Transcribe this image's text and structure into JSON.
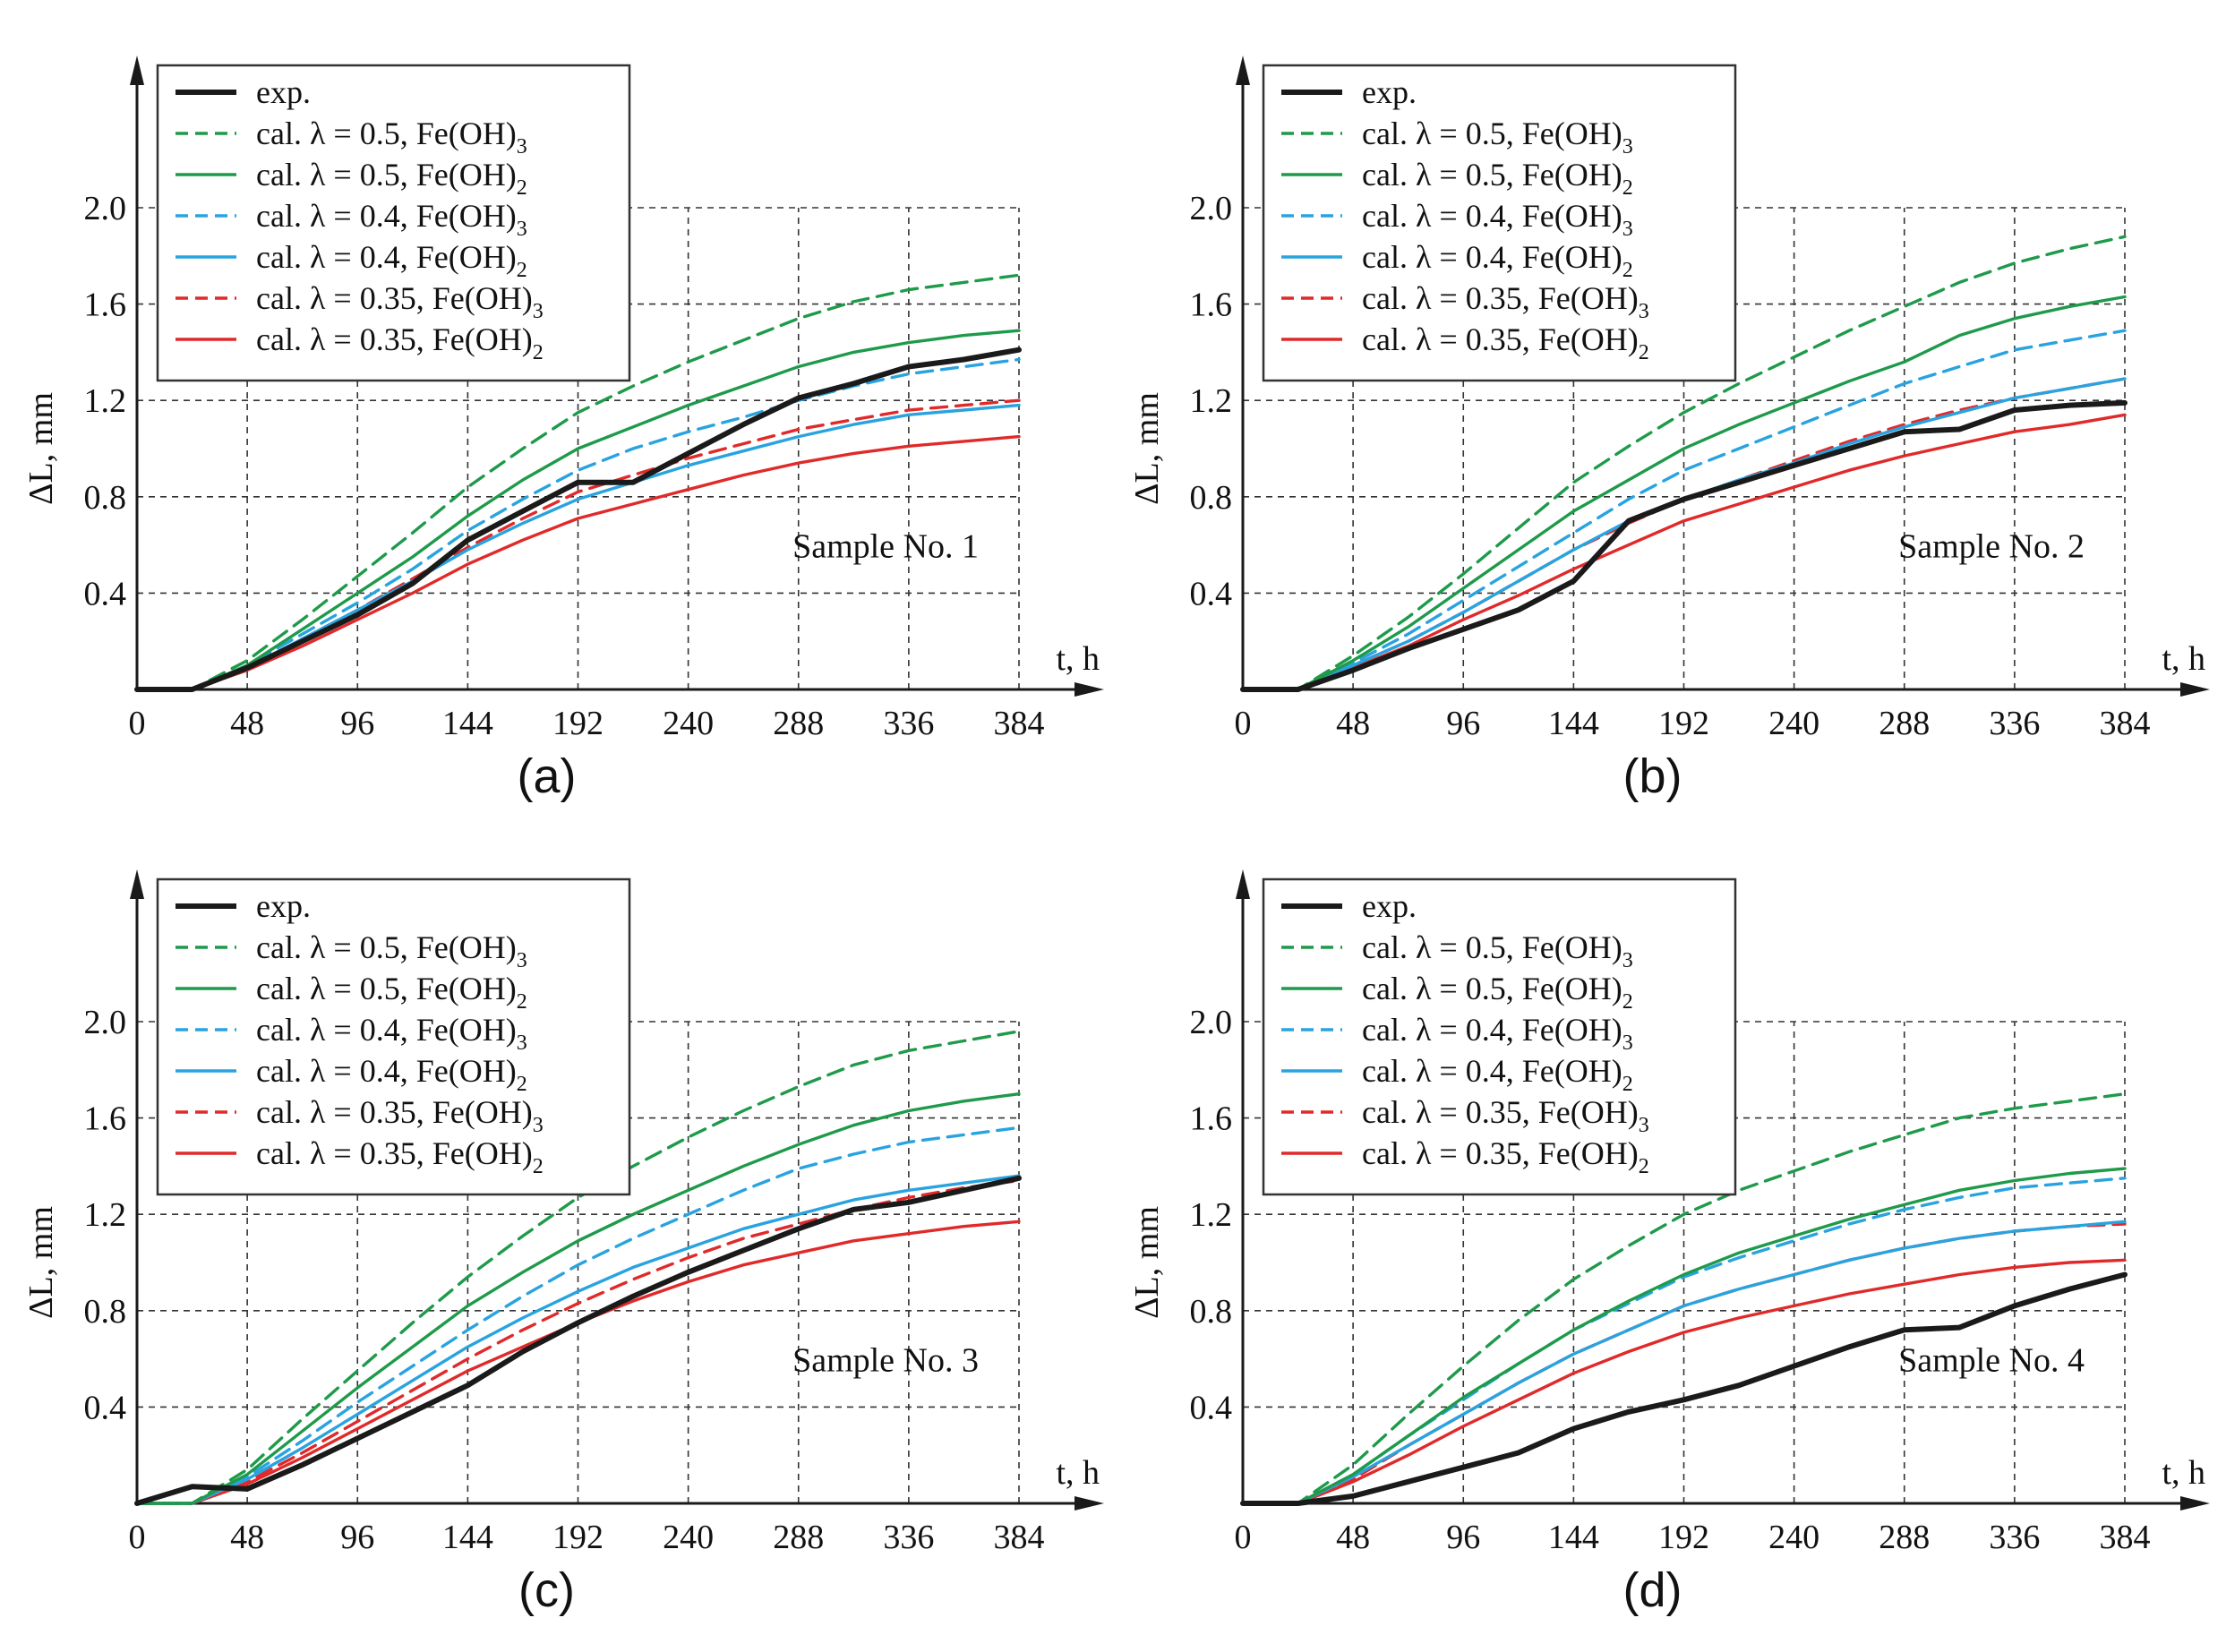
{
  "chart_data": [
    {
      "type": "line",
      "panel": "(a)",
      "annotation": "Sample No. 1",
      "xlabel": "t, h",
      "ylabel": "ΔL, mm",
      "xlim": [
        0,
        384
      ],
      "ylim": [
        0,
        2.0
      ],
      "x_ticks": [
        "0",
        "48",
        "96",
        "144",
        "192",
        "240",
        "288",
        "336",
        "384"
      ],
      "y_ticks": [
        "0.4",
        "0.8",
        "1.2",
        "1.6",
        "2.0"
      ],
      "x": [
        0,
        24,
        48,
        72,
        96,
        120,
        144,
        168,
        192,
        216,
        240,
        264,
        288,
        312,
        336,
        360,
        384
      ],
      "series": [
        {
          "name": "exp.",
          "values": [
            0,
            0,
            0.09,
            0.2,
            0.31,
            0.44,
            0.62,
            0.74,
            0.86,
            0.86,
            0.98,
            1.1,
            1.21,
            1.27,
            1.34,
            1.37,
            1.41
          ]
        },
        {
          "name": "cal. λ = 0.5, Fe(OH)3",
          "values": [
            0,
            0,
            0.12,
            0.29,
            0.47,
            0.65,
            0.84,
            1.0,
            1.15,
            1.26,
            1.36,
            1.45,
            1.54,
            1.61,
            1.66,
            1.69,
            1.72
          ]
        },
        {
          "name": "cal. λ = 0.5, Fe(OH)2",
          "values": [
            0,
            0,
            0.1,
            0.25,
            0.4,
            0.55,
            0.72,
            0.87,
            1.0,
            1.09,
            1.18,
            1.26,
            1.34,
            1.4,
            1.44,
            1.47,
            1.49
          ]
        },
        {
          "name": "cal. λ = 0.4, Fe(OH)3",
          "values": [
            0,
            0,
            0.1,
            0.23,
            0.36,
            0.5,
            0.66,
            0.79,
            0.91,
            1.0,
            1.07,
            1.13,
            1.2,
            1.26,
            1.31,
            1.34,
            1.37
          ]
        },
        {
          "name": "cal. λ = 0.4, Fe(OH)2",
          "values": [
            0,
            0,
            0.09,
            0.21,
            0.33,
            0.45,
            0.58,
            0.69,
            0.79,
            0.86,
            0.93,
            0.99,
            1.05,
            1.1,
            1.14,
            1.16,
            1.18
          ]
        },
        {
          "name": "cal. λ = 0.35, Fe(OH)3",
          "values": [
            0,
            0,
            0.09,
            0.21,
            0.33,
            0.46,
            0.59,
            0.71,
            0.82,
            0.89,
            0.96,
            1.02,
            1.08,
            1.12,
            1.16,
            1.18,
            1.2
          ]
        },
        {
          "name": "cal. λ = 0.35, Fe(OH)2",
          "values": [
            0,
            0,
            0.08,
            0.18,
            0.29,
            0.4,
            0.52,
            0.62,
            0.71,
            0.77,
            0.83,
            0.89,
            0.94,
            0.98,
            1.01,
            1.03,
            1.05
          ]
        }
      ]
    },
    {
      "type": "line",
      "panel": "(b)",
      "annotation": "Sample No. 2",
      "xlabel": "t, h",
      "ylabel": "ΔL, mm",
      "xlim": [
        0,
        384
      ],
      "ylim": [
        0,
        2.0
      ],
      "x_ticks": [
        "0",
        "48",
        "96",
        "144",
        "192",
        "240",
        "288",
        "336",
        "384"
      ],
      "y_ticks": [
        "0.4",
        "0.8",
        "1.2",
        "1.6",
        "2.0"
      ],
      "x": [
        0,
        24,
        48,
        72,
        96,
        120,
        144,
        168,
        192,
        216,
        240,
        264,
        288,
        312,
        336,
        360,
        384
      ],
      "series": [
        {
          "name": "exp.",
          "values": [
            0,
            0,
            0.08,
            0.17,
            0.25,
            0.33,
            0.45,
            0.7,
            0.79,
            0.86,
            0.93,
            1.0,
            1.07,
            1.08,
            1.16,
            1.18,
            1.19
          ]
        },
        {
          "name": "cal. λ = 0.5, Fe(OH)3",
          "values": [
            0,
            0,
            0.14,
            0.3,
            0.48,
            0.67,
            0.86,
            1.01,
            1.15,
            1.27,
            1.38,
            1.49,
            1.59,
            1.69,
            1.77,
            1.83,
            1.88
          ]
        },
        {
          "name": "cal. λ = 0.5, Fe(OH)2",
          "values": [
            0,
            0,
            0.12,
            0.26,
            0.42,
            0.58,
            0.74,
            0.87,
            1.0,
            1.1,
            1.19,
            1.28,
            1.36,
            1.47,
            1.54,
            1.59,
            1.63
          ]
        },
        {
          "name": "cal. λ = 0.4, Fe(OH)3",
          "values": [
            0,
            0,
            0.11,
            0.23,
            0.37,
            0.51,
            0.65,
            0.79,
            0.91,
            1.0,
            1.09,
            1.18,
            1.27,
            1.34,
            1.41,
            1.45,
            1.49
          ]
        },
        {
          "name": "cal. λ = 0.4, Fe(OH)2",
          "values": [
            0,
            0,
            0.1,
            0.2,
            0.32,
            0.45,
            0.58,
            0.7,
            0.79,
            0.87,
            0.94,
            1.02,
            1.09,
            1.15,
            1.21,
            1.25,
            1.29
          ]
        },
        {
          "name": "cal. λ = 0.35, Fe(OH)3",
          "values": [
            0,
            0,
            0.1,
            0.2,
            0.32,
            0.45,
            0.58,
            0.69,
            0.79,
            0.87,
            0.95,
            1.03,
            1.1,
            1.16,
            1.21,
            1.25,
            1.29
          ]
        },
        {
          "name": "cal. λ = 0.35, Fe(OH)2",
          "values": [
            0,
            0,
            0.09,
            0.18,
            0.29,
            0.39,
            0.5,
            0.6,
            0.7,
            0.77,
            0.84,
            0.91,
            0.97,
            1.02,
            1.07,
            1.1,
            1.14
          ]
        }
      ]
    },
    {
      "type": "line",
      "panel": "(c)",
      "annotation": "Sample No. 3",
      "xlabel": "t, h",
      "ylabel": "ΔL, mm",
      "xlim": [
        0,
        384
      ],
      "ylim": [
        0,
        2.0
      ],
      "x_ticks": [
        "0",
        "48",
        "96",
        "144",
        "192",
        "240",
        "288",
        "336",
        "384"
      ],
      "y_ticks": [
        "0.4",
        "0.8",
        "1.2",
        "1.6",
        "2.0"
      ],
      "x": [
        0,
        24,
        48,
        72,
        96,
        120,
        144,
        168,
        192,
        216,
        240,
        264,
        288,
        312,
        336,
        360,
        384
      ],
      "series": [
        {
          "name": "exp.",
          "values": [
            0,
            0.07,
            0.06,
            0.16,
            0.27,
            0.38,
            0.49,
            0.63,
            0.75,
            0.86,
            0.96,
            1.05,
            1.14,
            1.22,
            1.25,
            1.3,
            1.35
          ]
        },
        {
          "name": "cal. λ = 0.5, Fe(OH)3",
          "values": [
            0,
            0,
            0.14,
            0.35,
            0.55,
            0.75,
            0.94,
            1.11,
            1.27,
            1.4,
            1.52,
            1.63,
            1.73,
            1.82,
            1.88,
            1.92,
            1.96
          ]
        },
        {
          "name": "cal. λ = 0.5, Fe(OH)2",
          "values": [
            0,
            0,
            0.12,
            0.3,
            0.48,
            0.65,
            0.82,
            0.96,
            1.09,
            1.2,
            1.3,
            1.4,
            1.49,
            1.57,
            1.63,
            1.67,
            1.7
          ]
        },
        {
          "name": "cal. λ = 0.4, Fe(OH)3",
          "values": [
            0,
            0,
            0.11,
            0.26,
            0.42,
            0.57,
            0.72,
            0.86,
            0.99,
            1.1,
            1.2,
            1.3,
            1.39,
            1.45,
            1.5,
            1.53,
            1.56
          ]
        },
        {
          "name": "cal. λ = 0.4, Fe(OH)2",
          "values": [
            0,
            0,
            0.1,
            0.23,
            0.37,
            0.51,
            0.65,
            0.77,
            0.88,
            0.98,
            1.06,
            1.14,
            1.2,
            1.26,
            1.3,
            1.33,
            1.36
          ]
        },
        {
          "name": "cal. λ = 0.35, Fe(OH)3",
          "values": [
            0,
            0,
            0.09,
            0.21,
            0.34,
            0.47,
            0.6,
            0.72,
            0.83,
            0.93,
            1.02,
            1.1,
            1.16,
            1.22,
            1.27,
            1.31,
            1.34
          ]
        },
        {
          "name": "cal. λ = 0.35, Fe(OH)2",
          "values": [
            0,
            0,
            0.08,
            0.19,
            0.31,
            0.43,
            0.55,
            0.65,
            0.75,
            0.84,
            0.92,
            0.99,
            1.04,
            1.09,
            1.12,
            1.15,
            1.17
          ]
        }
      ]
    },
    {
      "type": "line",
      "panel": "(d)",
      "annotation": "Sample No. 4",
      "xlabel": "t, h",
      "ylabel": "ΔL, mm",
      "xlim": [
        0,
        384
      ],
      "ylim": [
        0,
        2.0
      ],
      "x_ticks": [
        "0",
        "48",
        "96",
        "144",
        "192",
        "240",
        "288",
        "336",
        "384"
      ],
      "y_ticks": [
        "0.4",
        "0.8",
        "1.2",
        "1.6",
        "2.0"
      ],
      "x": [
        0,
        24,
        48,
        72,
        96,
        120,
        144,
        168,
        192,
        216,
        240,
        264,
        288,
        312,
        336,
        360,
        384
      ],
      "series": [
        {
          "name": "exp.",
          "values": [
            0,
            0,
            0.03,
            0.09,
            0.15,
            0.21,
            0.31,
            0.38,
            0.43,
            0.49,
            0.57,
            0.65,
            0.72,
            0.73,
            0.82,
            0.89,
            0.95
          ]
        },
        {
          "name": "cal. λ = 0.5, Fe(OH)3",
          "values": [
            0,
            0,
            0.16,
            0.37,
            0.57,
            0.76,
            0.93,
            1.07,
            1.2,
            1.3,
            1.38,
            1.46,
            1.53,
            1.6,
            1.64,
            1.67,
            1.7
          ]
        },
        {
          "name": "cal. λ = 0.5, Fe(OH)2",
          "values": [
            0,
            0,
            0.12,
            0.28,
            0.44,
            0.58,
            0.72,
            0.84,
            0.95,
            1.04,
            1.11,
            1.18,
            1.24,
            1.3,
            1.34,
            1.37,
            1.39
          ]
        },
        {
          "name": "cal. λ = 0.4, Fe(OH)3",
          "values": [
            0,
            0,
            0.12,
            0.28,
            0.43,
            0.58,
            0.72,
            0.83,
            0.94,
            1.02,
            1.09,
            1.16,
            1.22,
            1.27,
            1.31,
            1.33,
            1.35
          ]
        },
        {
          "name": "cal. λ = 0.4, Fe(OH)2",
          "values": [
            0,
            0,
            0.11,
            0.24,
            0.37,
            0.5,
            0.62,
            0.72,
            0.82,
            0.89,
            0.95,
            1.01,
            1.06,
            1.1,
            1.13,
            1.15,
            1.17
          ]
        },
        {
          "name": "cal. λ = 0.35, Fe(OH)3",
          "values": [
            0,
            0,
            0.1,
            0.24,
            0.37,
            0.5,
            0.62,
            0.72,
            0.82,
            0.89,
            0.95,
            1.01,
            1.06,
            1.1,
            1.13,
            1.15,
            1.16
          ]
        },
        {
          "name": "cal. λ = 0.35, Fe(OH)2",
          "values": [
            0,
            0,
            0.09,
            0.2,
            0.32,
            0.43,
            0.54,
            0.63,
            0.71,
            0.77,
            0.82,
            0.87,
            0.91,
            0.95,
            0.98,
            1.0,
            1.01
          ]
        }
      ]
    }
  ],
  "legend": {
    "labels": [
      {
        "text": "exp.",
        "sub": ""
      },
      {
        "text": "cal. λ = 0.5, Fe(OH)",
        "sub": "3"
      },
      {
        "text": "cal. λ = 0.5, Fe(OH)",
        "sub": "2"
      },
      {
        "text": "cal. λ = 0.4, Fe(OH)",
        "sub": "3"
      },
      {
        "text": "cal. λ = 0.4, Fe(OH)",
        "sub": "2"
      },
      {
        "text": "cal. λ = 0.35, Fe(OH)",
        "sub": "3"
      },
      {
        "text": "cal. λ = 0.35, Fe(OH)",
        "sub": "2"
      }
    ]
  },
  "styles": [
    {
      "color": "#1a1a1a",
      "dash": "solid"
    },
    {
      "color": "#1e9a4a",
      "dash": "dashed"
    },
    {
      "color": "#1e9a4a",
      "dash": "solid"
    },
    {
      "color": "#29a3e0",
      "dash": "dashed"
    },
    {
      "color": "#29a3e0",
      "dash": "solid"
    },
    {
      "color": "#e02a2a",
      "dash": "dashed"
    },
    {
      "color": "#e02a2a",
      "dash": "solid"
    }
  ]
}
